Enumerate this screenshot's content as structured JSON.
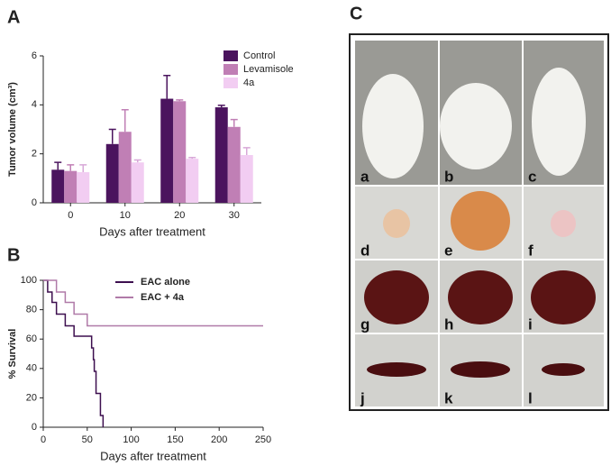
{
  "panel_labels": [
    "A",
    "B",
    "C"
  ],
  "photo_labels": [
    "a",
    "b",
    "c",
    "d",
    "e",
    "f",
    "g",
    "h",
    "i",
    "j",
    "k",
    "l"
  ],
  "chart_data": [
    {
      "type": "bar",
      "ylabel": "Tumor volume (cm³)",
      "xlabel": "Days after treatment",
      "categories": [
        "0",
        "10",
        "20",
        "30"
      ],
      "series": [
        {
          "name": "Control",
          "color": "#4b145e",
          "values": [
            1.35,
            2.4,
            4.25,
            3.9
          ],
          "errors": [
            0.3,
            0.6,
            0.95,
            0.08
          ]
        },
        {
          "name": "Levamisole",
          "color": "#c07fb5",
          "values": [
            1.3,
            2.9,
            4.15,
            3.1
          ],
          "errors": [
            0.25,
            0.9,
            0.05,
            0.3
          ]
        },
        {
          "name": "4a",
          "color": "#f2cdf2",
          "values": [
            1.25,
            1.65,
            1.8,
            1.95
          ],
          "errors": [
            0.3,
            0.1,
            0.05,
            0.3
          ]
        }
      ],
      "ylim": [
        0,
        6
      ],
      "yticks": [
        0,
        2,
        4,
        6
      ]
    },
    {
      "type": "step",
      "ylabel": "% Survival",
      "xlabel": "Days after treatment",
      "series": [
        {
          "name": "EAC alone",
          "color": "#3d0f4f",
          "x": [
            0,
            5,
            10,
            15,
            25,
            35,
            55,
            57,
            58,
            60,
            65,
            68
          ],
          "values": [
            100,
            92,
            85,
            77,
            69,
            62,
            54,
            46,
            38,
            23,
            8,
            0
          ]
        },
        {
          "name": "EAC + 4a",
          "color": "#b07aa8",
          "x": [
            0,
            15,
            25,
            35,
            50,
            250
          ],
          "values": [
            100,
            92,
            85,
            77,
            69,
            69
          ]
        }
      ],
      "xlim": [
        0,
        250
      ],
      "xticks": [
        0,
        50,
        100,
        150,
        200,
        250
      ],
      "ylim": [
        0,
        100
      ],
      "yticks": [
        0,
        20,
        40,
        60,
        80,
        100
      ]
    }
  ]
}
